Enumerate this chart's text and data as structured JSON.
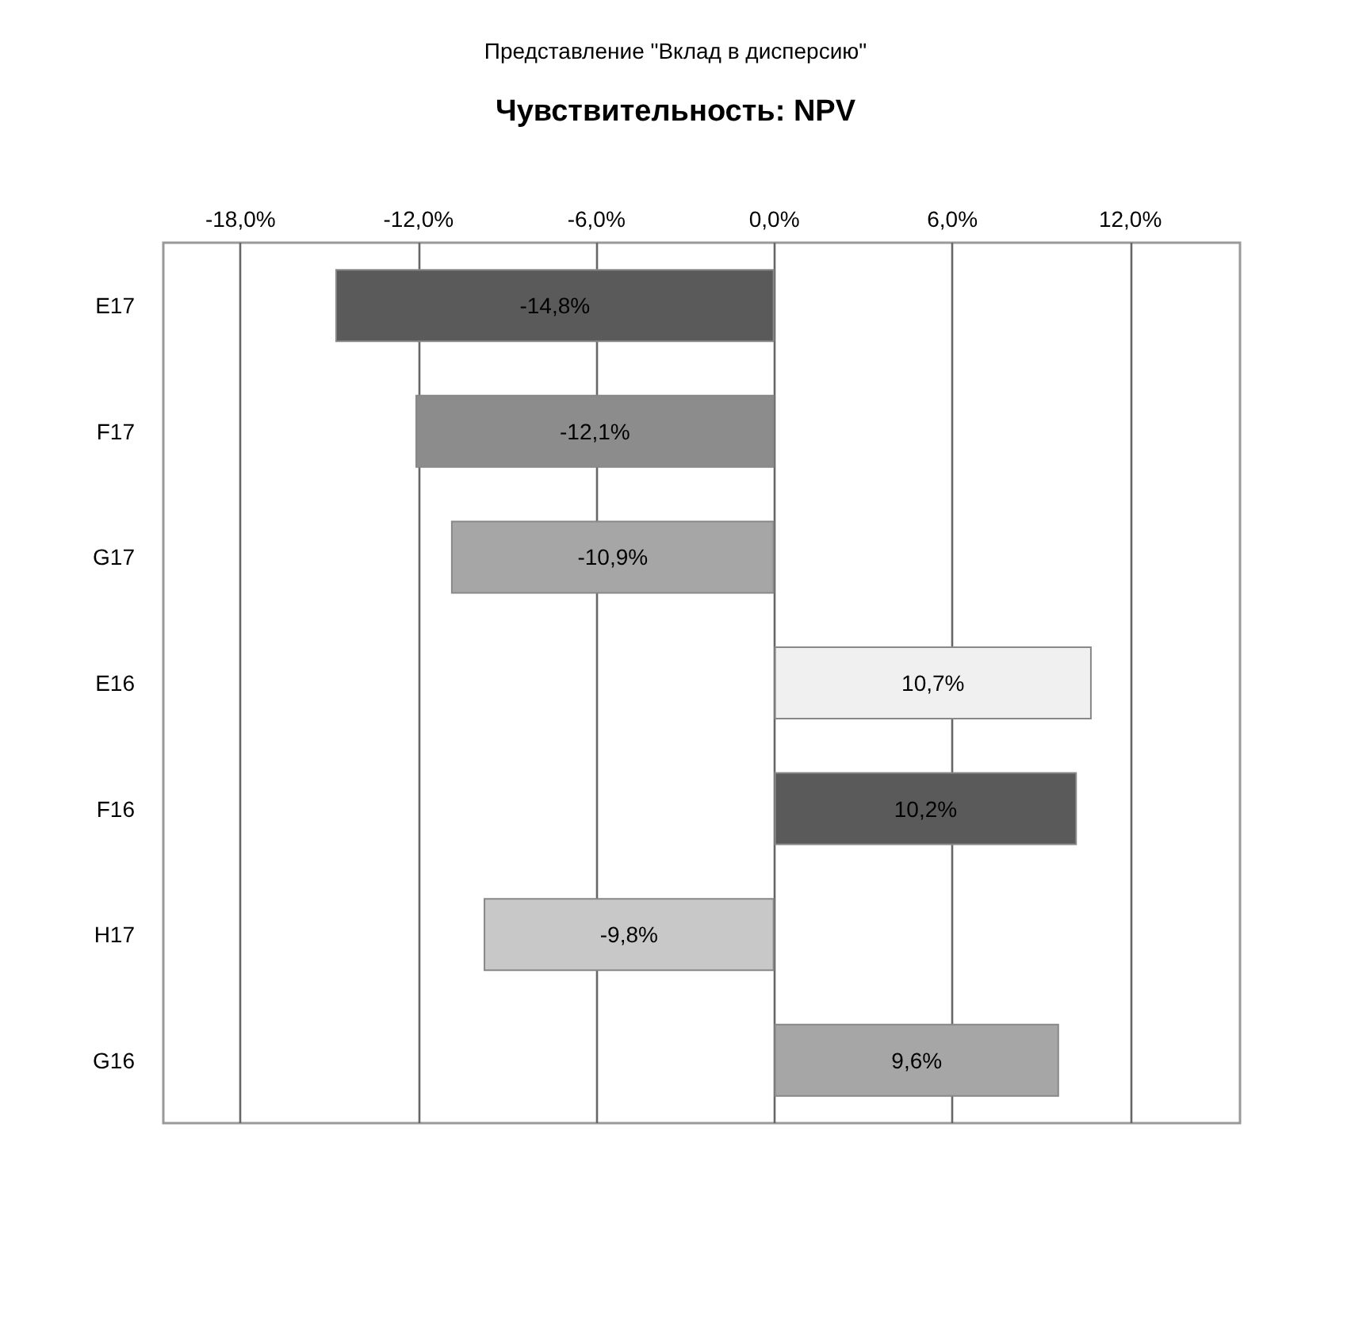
{
  "chart_data": {
    "type": "bar",
    "orientation": "horizontal",
    "title": "Чувствительность: NPV",
    "subtitle": "Представление \"Вклад в дисперсию\"",
    "categories": [
      "E17",
      "F17",
      "G17",
      "E16",
      "F16",
      "H17",
      "G16"
    ],
    "values": [
      -14.8,
      -12.1,
      -10.9,
      10.7,
      10.2,
      -9.8,
      9.6
    ],
    "colors": [
      "#5a5a5a",
      "#8c8c8c",
      "#a6a6a6",
      "#f0f0f0",
      "#5a5a5a",
      "#c8c8c8",
      "#a6a6a6"
    ],
    "value_labels": [
      "-14,8%",
      "-12,1%",
      "-10,9%",
      "10,7%",
      "10,2%",
      "-9,8%",
      "9,6%"
    ],
    "xlim": [
      -20.6,
      15.7
    ],
    "xticks": [
      {
        "value": -18,
        "label": "-18,0%"
      },
      {
        "value": -12,
        "label": "-12,0%"
      },
      {
        "value": -6,
        "label": "-6,0%"
      },
      {
        "value": 0,
        "label": "0,0%"
      },
      {
        "value": 6,
        "label": "6,0%"
      },
      {
        "value": 12,
        "label": "12,0%"
      }
    ],
    "grid": "x"
  }
}
